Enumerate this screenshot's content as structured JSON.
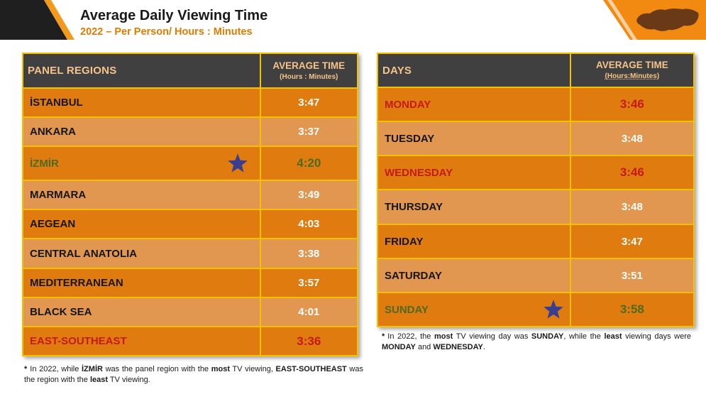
{
  "header": {
    "title": "Average Daily Viewing Time",
    "subtitle": "2022 – Per Person/ Hours : Minutes"
  },
  "colors": {
    "accent_orange": "#e07b00",
    "row_dark": "#e07b10",
    "row_light": "#e1974f",
    "header_bg": "#404040",
    "header_text": "#f5c48a",
    "border_yellow": "#f3c100",
    "lowest_red": "#c51a11",
    "highest_green": "#4d6b1f",
    "star": "#3b3e8f"
  },
  "regions_table": {
    "col1_header": "PANEL REGIONS",
    "col2_header_line1": "AVERAGE TIME",
    "col2_header_line2": "(Hours : Minutes)",
    "rows": [
      {
        "name": "İSTANBUL",
        "value": "3:47"
      },
      {
        "name": "ANKARA",
        "value": "3:37"
      },
      {
        "name": "İZMİR",
        "value": "4:20"
      },
      {
        "name": "MARMARA",
        "value": "3:49"
      },
      {
        "name": "AEGEAN",
        "value": "4:03"
      },
      {
        "name": "CENTRAL ANATOLIA",
        "value": "3:38"
      },
      {
        "name": "MEDITERRANEAN",
        "value": "3:57"
      },
      {
        "name": "BLACK SEA",
        "value": "4:01"
      },
      {
        "name": "EAST-SOUTHEAST",
        "value": "3:36"
      }
    ],
    "note": {
      "asterisk": "*",
      "t1": "In 2022, while ",
      "b1": "İZMİR",
      "t2": " was the panel region with the ",
      "b2": "most",
      "t3": " TV viewing, ",
      "b3": "EAST-SOUTHEAST",
      "t4": " was the region with the ",
      "b4": "least",
      "t5": " TV viewing."
    }
  },
  "days_table": {
    "col1_header": "DAYS",
    "col2_header_line1": "AVERAGE TIME",
    "col2_header_line2": "(Hours:Minutes)",
    "rows": [
      {
        "name": "MONDAY",
        "value": "3:46"
      },
      {
        "name": "TUESDAY",
        "value": "3:48"
      },
      {
        "name": "WEDNESDAY",
        "value": "3:46"
      },
      {
        "name": "THURSDAY",
        "value": "3:48"
      },
      {
        "name": "FRIDAY",
        "value": "3:47"
      },
      {
        "name": "SATURDAY",
        "value": "3:51"
      },
      {
        "name": "SUNDAY",
        "value": "3:58"
      }
    ],
    "note": {
      "asterisk": "*",
      "t1": "In 2022, the ",
      "b1": "most",
      "t2": " TV viewing day was ",
      "b2": "SUNDAY",
      "t3": ", while the ",
      "b3": "least",
      "t4": " viewing days were ",
      "b4": "MONDAY",
      "t5": " and ",
      "b5": "WEDNESDAY",
      "t6": "."
    }
  },
  "icons": {
    "highest_marker": "star-icon",
    "logo": "turkey-map-icon"
  }
}
